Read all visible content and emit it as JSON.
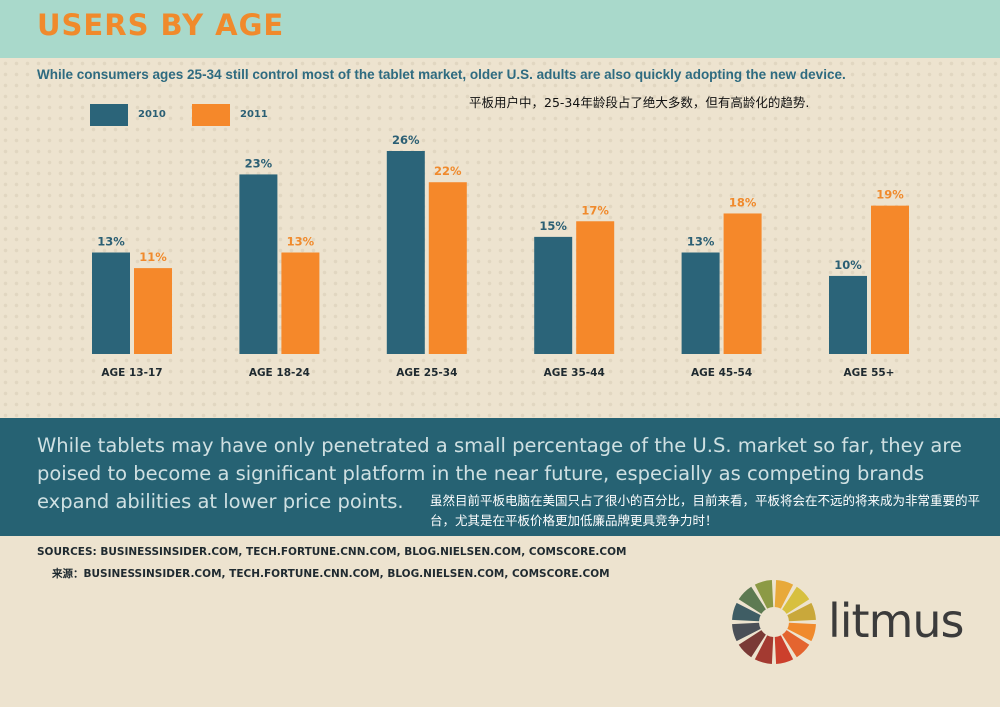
{
  "header": {
    "title": "USERS BY AGE",
    "subtitle": "While consumers ages 25-34 still control most of the tablet market, older U.S. adults are also quickly adopting the new device.",
    "subtitle_cn": "平板用户中，25-34年龄段占了绝大多数，但有高龄化的趋势."
  },
  "colors": {
    "y2010": "#2b6479",
    "y2011": "#f5882a"
  },
  "chart_data": {
    "type": "bar",
    "categories": [
      "AGE 13-17",
      "AGE 18-24",
      "AGE 25-34",
      "AGE 35-44",
      "AGE 45-54",
      "AGE 55+"
    ],
    "series": [
      {
        "name": "2010",
        "values": [
          13,
          23,
          26,
          15,
          13,
          10
        ],
        "labels": [
          "13%",
          "23%",
          "26%",
          "15%",
          "13%",
          "10%"
        ]
      },
      {
        "name": "2011",
        "values": [
          11,
          13,
          22,
          17,
          18,
          19
        ],
        "labels": [
          "11%",
          "13%",
          "22%",
          "17%",
          "18%",
          "19%"
        ]
      }
    ],
    "ylim": [
      0,
      26
    ],
    "grid": false,
    "legend_position": "top-left"
  },
  "band": {
    "text": "While tablets may have only penetrated a small percentage of the U.S. market so far, they are poised to become a significant platform in the near future, especially as competing brands expand abilities at lower price points.",
    "text_cn": "虽然目前平板电脑在美国只占了很小的百分比，目前来看，平板将会在不远的将来成为非常重要的平台，尤其是在平板价格更加低廉品牌更具竞争力时！"
  },
  "sources": {
    "line_en": "SOURCES: BUSINESSINSIDER.COM, TECH.FORTUNE.CNN.COM, BLOG.NIELSEN.COM, COMSCORE.COM",
    "line_cn": "来源：BUSINESSINSIDER.COM, TECH.FORTUNE.CNN.COM, BLOG.NIELSEN.COM, COMSCORE.COM"
  },
  "logo": {
    "text": "litmus",
    "wheel_colors": [
      "#e8a93a",
      "#d7c03f",
      "#c9a83b",
      "#f08a2c",
      "#e4642f",
      "#cc3f2c",
      "#a33a31",
      "#7a3a36",
      "#4a4f57",
      "#3f5d64",
      "#5d7a52",
      "#8c9a45"
    ]
  }
}
